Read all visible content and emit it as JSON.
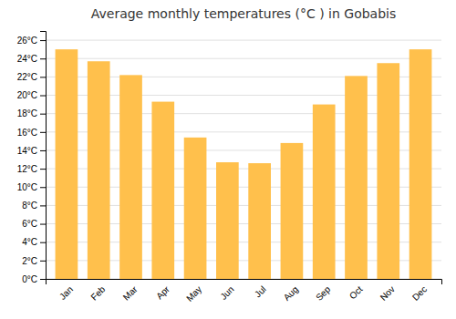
{
  "chart_data": {
    "type": "bar",
    "title": "Average monthly temperatures (°C ) in Gobabis",
    "categories": [
      "Jan",
      "Feb",
      "Mar",
      "Apr",
      "May",
      "Jun",
      "Jul",
      "Aug",
      "Sep",
      "Oct",
      "Nov",
      "Dec"
    ],
    "values": [
      25.0,
      23.7,
      22.2,
      19.3,
      15.4,
      12.7,
      12.6,
      14.8,
      19.0,
      22.1,
      23.5,
      25.0
    ],
    "color": "#FFC04C",
    "ylim": [
      0,
      27
    ],
    "yticks": [
      {
        "value": 0,
        "label": "0°C"
      },
      {
        "value": 2,
        "label": "2°C"
      },
      {
        "value": 4,
        "label": "4°C"
      },
      {
        "value": 6,
        "label": "6°C"
      },
      {
        "value": 8,
        "label": "8°C"
      },
      {
        "value": 10,
        "label": "10°C"
      },
      {
        "value": 12,
        "label": "12°C"
      },
      {
        "value": 14,
        "label": "14°C"
      },
      {
        "value": 16,
        "label": "16°C"
      },
      {
        "value": 18,
        "label": "18°C"
      },
      {
        "value": 20,
        "label": "20°C"
      },
      {
        "value": 22,
        "label": "22°C"
      },
      {
        "value": 24,
        "label": "24°C"
      },
      {
        "value": 26,
        "label": "26°C"
      }
    ],
    "grid": true
  }
}
